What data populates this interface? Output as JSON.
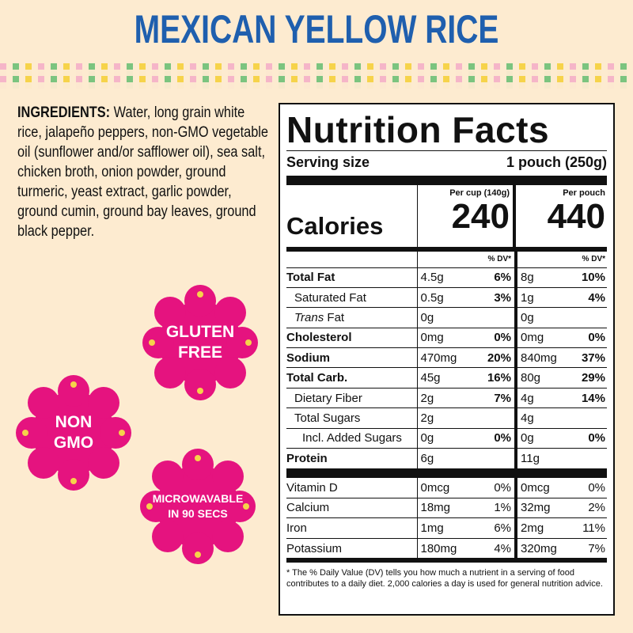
{
  "title": "MEXICAN YELLOW RICE",
  "ingredients": {
    "heading": "INGREDIENTS:",
    "text": "Water, long grain white rice, jalapeño peppers, non-GMO vegetable oil (sunflower and/or safflower oil), sea salt, chicken broth, onion powder, ground turmeric, yeast extract, garlic powder, ground cumin, ground bay leaves, ground black pepper."
  },
  "badges": {
    "gluten_free": "GLUTEN\nFREE",
    "non_gmo": "NON\nGMO",
    "microwavable": "MICROWAVABLE\nIN 90 SECS"
  },
  "colors": {
    "badge": "#e5137f",
    "title": "#1f5fae",
    "background": "#fdebd0"
  },
  "nutrition": {
    "title": "Nutrition Facts",
    "serving_label": "Serving size",
    "serving_value": "1 pouch (250g)",
    "per_cup": "Per cup (140g)",
    "per_pouch": "Per pouch",
    "calories_label": "Calories",
    "calories_cup": "240",
    "calories_pouch": "440",
    "dv_label": "% DV*",
    "rows": [
      {
        "label": "Total Fat",
        "a": "4.5g",
        "ad": "6%",
        "b": "8g",
        "bd": "10%"
      },
      {
        "label": "Saturated Fat",
        "a": "0.5g",
        "ad": "3%",
        "b": "1g",
        "bd": "4%"
      },
      {
        "label_pre": "Trans",
        "label": "Fat",
        "a": "0g",
        "ad": "",
        "b": "0g",
        "bd": ""
      },
      {
        "label": "Cholesterol",
        "a": "0mg",
        "ad": "0%",
        "b": "0mg",
        "bd": "0%"
      },
      {
        "label": "Sodium",
        "a": "470mg",
        "ad": "20%",
        "b": "840mg",
        "bd": "37%"
      },
      {
        "label": "Total Carb.",
        "a": "45g",
        "ad": "16%",
        "b": "80g",
        "bd": "29%"
      },
      {
        "label": "Dietary Fiber",
        "a": "2g",
        "ad": "7%",
        "b": "4g",
        "bd": "14%"
      },
      {
        "label": "Total Sugars",
        "a": "2g",
        "ad": "",
        "b": "4g",
        "bd": ""
      },
      {
        "label": "Incl. Added Sugars",
        "a": "0g",
        "ad": "0%",
        "b": "0g",
        "bd": "0%"
      },
      {
        "label": "Protein",
        "a": "6g",
        "ad": "",
        "b": "11g",
        "bd": ""
      }
    ],
    "vitamins": [
      {
        "label": "Vitamin D",
        "a": "0mcg",
        "ad": "0%",
        "b": "0mcg",
        "bd": "0%"
      },
      {
        "label": "Calcium",
        "a": "18mg",
        "ad": "1%",
        "b": "32mg",
        "bd": "2%"
      },
      {
        "label": "Iron",
        "a": "1mg",
        "ad": "6%",
        "b": "2mg",
        "bd": "11%"
      },
      {
        "label": "Potassium",
        "a": "180mg",
        "ad": "4%",
        "b": "320mg",
        "bd": "7%"
      }
    ],
    "footnote": "* The % Daily Value (DV) tells you how much a nutrient in a serving of food contributes to a daily diet. 2,000 calories a day is used for general nutrition advice."
  }
}
